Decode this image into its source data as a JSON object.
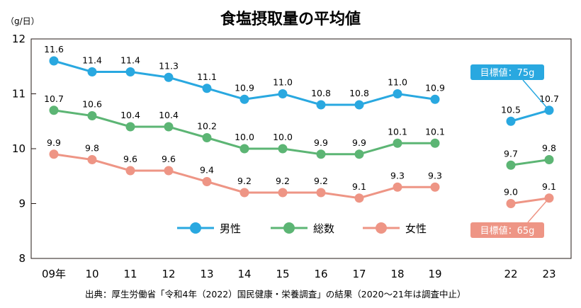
{
  "chart_data": {
    "type": "line",
    "title": "食塩摂取量の平均値",
    "unit_label": "（g/日）",
    "categories": [
      "09年",
      "10",
      "11",
      "12",
      "13",
      "14",
      "15",
      "16",
      "17",
      "18",
      "19",
      "22",
      "23"
    ],
    "ylim": [
      8,
      12
    ],
    "y_ticks": [
      "8",
      "9",
      "10",
      "11",
      "12"
    ],
    "grid": false,
    "legend_position": "bottom-center",
    "series": [
      {
        "name": "男性",
        "color": "#29a8e0",
        "values": [
          11.6,
          11.4,
          11.4,
          11.3,
          11.1,
          10.9,
          11.0,
          10.8,
          10.8,
          11.0,
          10.9,
          10.5,
          10.7
        ],
        "labels": [
          "11.6",
          "11.4",
          "11.4",
          "11.3",
          "11.1",
          "10.9",
          "11.0",
          "10.8",
          "10.8",
          "11.0",
          "10.9",
          "10.5",
          "10.7"
        ]
      },
      {
        "name": "総数",
        "color": "#5cb574",
        "values": [
          10.7,
          10.6,
          10.4,
          10.4,
          10.2,
          10.0,
          10.0,
          9.9,
          9.9,
          10.1,
          10.1,
          9.7,
          9.8
        ],
        "labels": [
          "10.7",
          "10.6",
          "10.4",
          "10.4",
          "10.2",
          "10.0",
          "10.0",
          "9.9",
          "9.9",
          "10.1",
          "10.1",
          "9.7",
          "9.8"
        ]
      },
      {
        "name": "女性",
        "color": "#ee9585",
        "values": [
          9.9,
          9.8,
          9.6,
          9.6,
          9.4,
          9.2,
          9.2,
          9.2,
          9.1,
          9.3,
          9.3,
          9.0,
          9.1
        ],
        "labels": [
          "9.9",
          "9.8",
          "9.6",
          "9.6",
          "9.4",
          "9.2",
          "9.2",
          "9.2",
          "9.1",
          "9.3",
          "9.3",
          "9.0",
          "9.1"
        ]
      }
    ],
    "annotations": [
      {
        "text": "目標値：75g",
        "series": "男性",
        "color": "#29a8e0"
      },
      {
        "text": "目標値：65g",
        "series": "女性",
        "color": "#ee9585"
      }
    ],
    "source": "出典：厚生労働省「令和4年（2022）国民健康・栄養調査」の結果（2020～21年は調査中止）"
  }
}
